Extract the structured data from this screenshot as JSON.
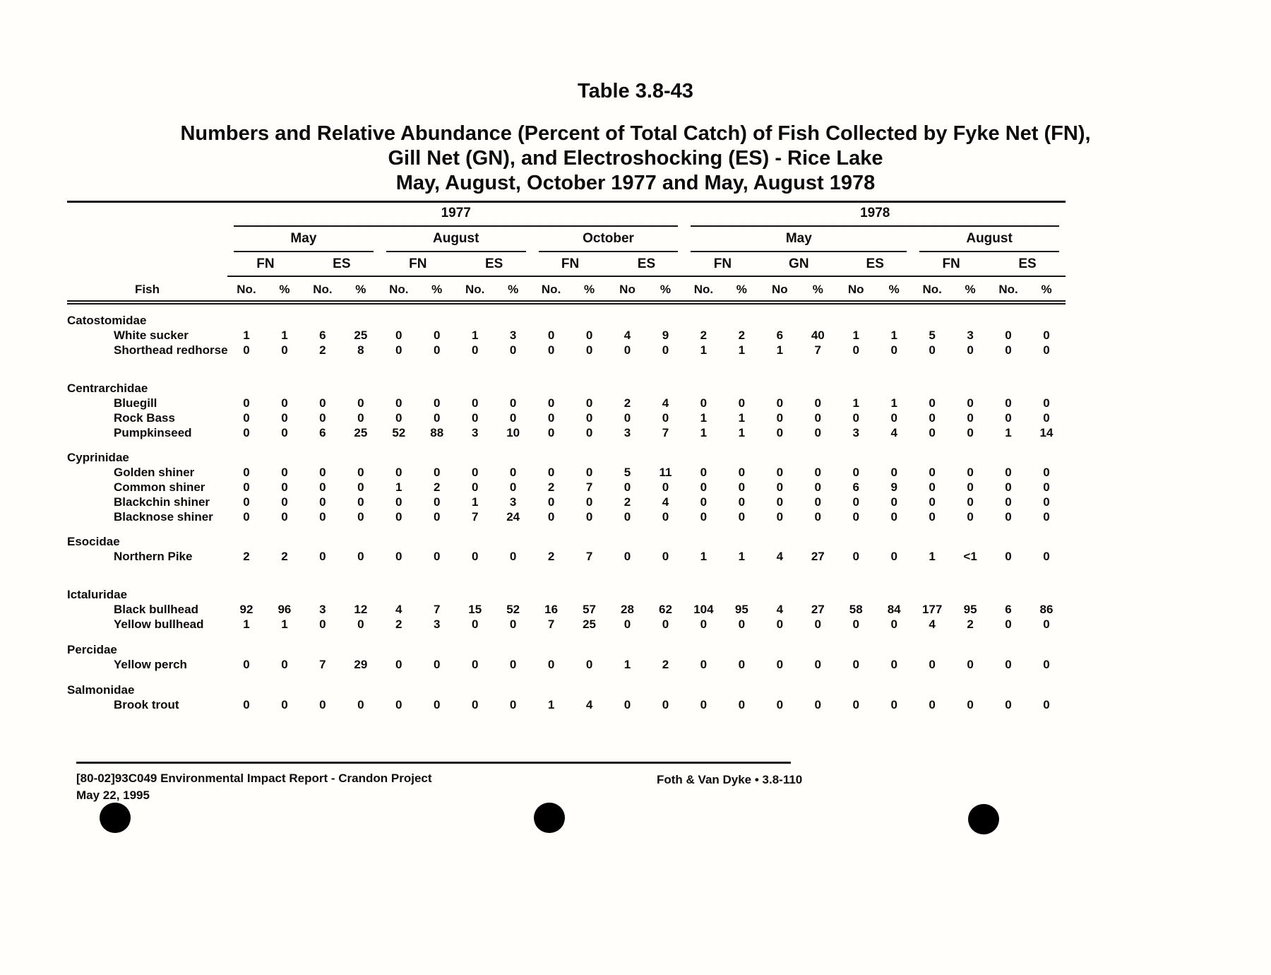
{
  "page": {
    "table_label": "Table 3.8-43",
    "title_lines": [
      "Numbers and Relative Abundance (Percent of Total Catch) of Fish Collected by Fyke Net (FN),",
      "Gill Net (GN), and Electroshocking (ES) - Rice Lake",
      "May, August, October 1977 and May, August 1978"
    ]
  },
  "table": {
    "row_header": "Fish",
    "years": [
      {
        "label": "1977",
        "span": 12
      },
      {
        "label": "1978",
        "span": 10
      }
    ],
    "months": [
      {
        "label": "May",
        "span": 4
      },
      {
        "label": "August",
        "span": 4
      },
      {
        "label": "October",
        "span": 4
      },
      {
        "label": "May",
        "span": 6
      },
      {
        "label": "August",
        "span": 4
      }
    ],
    "gears": [
      "FN",
      "ES",
      "FN",
      "ES",
      "FN",
      "ES",
      "FN",
      "GN",
      "ES",
      "FN",
      "ES"
    ],
    "subheaders": [
      "No.",
      "%",
      "No.",
      "%",
      "No.",
      "%",
      "No.",
      "%",
      "No.",
      "%",
      "No",
      "%",
      "No.",
      "%",
      "No",
      "%",
      "No",
      "%",
      "No.",
      "%",
      "No.",
      "%"
    ],
    "groups": [
      {
        "family": "Catostomidae",
        "rows": [
          {
            "name": "White sucker",
            "values": [
              "1",
              "1",
              "6",
              "25",
              "0",
              "0",
              "1",
              "3",
              "0",
              "0",
              "4",
              "9",
              "2",
              "2",
              "6",
              "40",
              "1",
              "1",
              "5",
              "3",
              "0",
              "0"
            ]
          },
          {
            "name": "Shorthead redhorse",
            "values": [
              "0",
              "0",
              "2",
              "8",
              "0",
              "0",
              "0",
              "0",
              "0",
              "0",
              "0",
              "0",
              "1",
              "1",
              "1",
              "7",
              "0",
              "0",
              "0",
              "0",
              "0",
              "0"
            ]
          }
        ]
      },
      {
        "family": "Centrarchidae",
        "rows": [
          {
            "name": "Bluegill",
            "values": [
              "0",
              "0",
              "0",
              "0",
              "0",
              "0",
              "0",
              "0",
              "0",
              "0",
              "2",
              "4",
              "0",
              "0",
              "0",
              "0",
              "1",
              "1",
              "0",
              "0",
              "0",
              "0"
            ]
          },
          {
            "name": "Rock Bass",
            "values": [
              "0",
              "0",
              "0",
              "0",
              "0",
              "0",
              "0",
              "0",
              "0",
              "0",
              "0",
              "0",
              "1",
              "1",
              "0",
              "0",
              "0",
              "0",
              "0",
              "0",
              "0",
              "0"
            ]
          },
          {
            "name": "Pumpkinseed",
            "values": [
              "0",
              "0",
              "6",
              "25",
              "52",
              "88",
              "3",
              "10",
              "0",
              "0",
              "3",
              "7",
              "1",
              "1",
              "0",
              "0",
              "3",
              "4",
              "0",
              "0",
              "1",
              "14"
            ]
          }
        ]
      },
      {
        "family": "Cyprinidae",
        "rows": [
          {
            "name": "Golden shiner",
            "values": [
              "0",
              "0",
              "0",
              "0",
              "0",
              "0",
              "0",
              "0",
              "0",
              "0",
              "5",
              "11",
              "0",
              "0",
              "0",
              "0",
              "0",
              "0",
              "0",
              "0",
              "0",
              "0"
            ]
          },
          {
            "name": "Common shiner",
            "values": [
              "0",
              "0",
              "0",
              "0",
              "1",
              "2",
              "0",
              "0",
              "2",
              "7",
              "0",
              "0",
              "0",
              "0",
              "0",
              "0",
              "6",
              "9",
              "0",
              "0",
              "0",
              "0"
            ]
          },
          {
            "name": "Blackchin shiner",
            "values": [
              "0",
              "0",
              "0",
              "0",
              "0",
              "0",
              "1",
              "3",
              "0",
              "0",
              "2",
              "4",
              "0",
              "0",
              "0",
              "0",
              "0",
              "0",
              "0",
              "0",
              "0",
              "0"
            ]
          },
          {
            "name": "Blacknose shiner",
            "values": [
              "0",
              "0",
              "0",
              "0",
              "0",
              "0",
              "7",
              "24",
              "0",
              "0",
              "0",
              "0",
              "0",
              "0",
              "0",
              "0",
              "0",
              "0",
              "0",
              "0",
              "0",
              "0"
            ]
          }
        ]
      },
      {
        "family": "Esocidae",
        "rows": [
          {
            "name": "Northern Pike",
            "values": [
              "2",
              "2",
              "0",
              "0",
              "0",
              "0",
              "0",
              "0",
              "2",
              "7",
              "0",
              "0",
              "1",
              "1",
              "4",
              "27",
              "0",
              "0",
              "1",
              "<1",
              "0",
              "0"
            ]
          }
        ]
      },
      {
        "family": "Ictaluridae",
        "rows": [
          {
            "name": "Black bullhead",
            "values": [
              "92",
              "96",
              "3",
              "12",
              "4",
              "7",
              "15",
              "52",
              "16",
              "57",
              "28",
              "62",
              "104",
              "95",
              "4",
              "27",
              "58",
              "84",
              "177",
              "95",
              "6",
              "86"
            ]
          },
          {
            "name": "Yellow bullhead",
            "values": [
              "1",
              "1",
              "0",
              "0",
              "2",
              "3",
              "0",
              "0",
              "7",
              "25",
              "0",
              "0",
              "0",
              "0",
              "0",
              "0",
              "0",
              "0",
              "4",
              "2",
              "0",
              "0"
            ]
          }
        ]
      },
      {
        "family": "Percidae",
        "rows": [
          {
            "name": "Yellow perch",
            "values": [
              "0",
              "0",
              "7",
              "29",
              "0",
              "0",
              "0",
              "0",
              "0",
              "0",
              "1",
              "2",
              "0",
              "0",
              "0",
              "0",
              "0",
              "0",
              "0",
              "0",
              "0",
              "0"
            ]
          }
        ]
      },
      {
        "family": "Salmonidae",
        "rows": [
          {
            "name": "Brook trout",
            "values": [
              "0",
              "0",
              "0",
              "0",
              "0",
              "0",
              "0",
              "0",
              "1",
              "4",
              "0",
              "0",
              "0",
              "0",
              "0",
              "0",
              "0",
              "0",
              "0",
              "0",
              "0",
              "0"
            ]
          }
        ]
      }
    ]
  },
  "footer": {
    "left_line1": "[80-02]93C049  Environmental Impact Report - Crandon Project",
    "left_line2": "May 22, 1995",
    "right": "Foth & Van Dyke • 3.8-110"
  }
}
